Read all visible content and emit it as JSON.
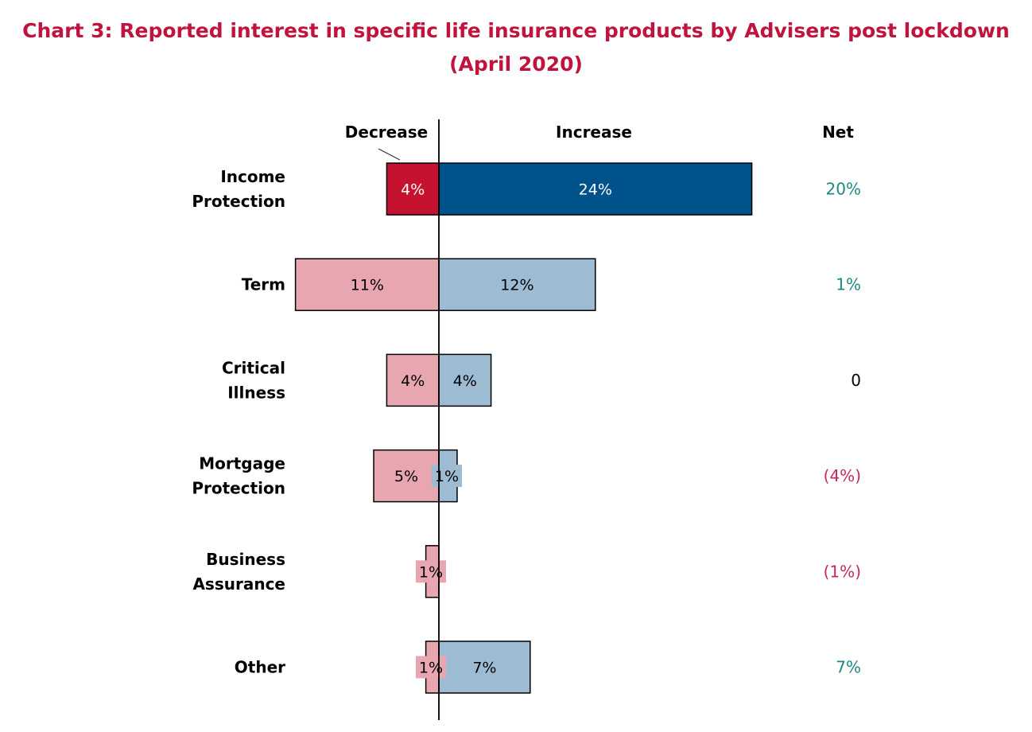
{
  "title_line1": "Chart 3: Reported interest in specific life insurance products by Advisers post lockdown",
  "title_line2": "(April 2020)",
  "colors": {
    "title": "#c0143c",
    "decrease_highlight": "#c41230",
    "increase_highlight": "#00538a",
    "decrease": "#e8a7b0",
    "increase": "#9dbcd4",
    "net_positive": "#1a8a80",
    "net_negative": "#c42a5a",
    "net_zero": "#000000"
  },
  "chart_data": {
    "type": "bar",
    "orientation": "horizontal-diverging",
    "column_headers": {
      "decrease": "Decrease",
      "increase": "Increase",
      "net": "Net"
    },
    "categories": [
      [
        "Income",
        "Protection"
      ],
      [
        "Term"
      ],
      [
        "Critical",
        "Illness"
      ],
      [
        "Mortgage",
        "Protection"
      ],
      [
        "Business",
        "Assurance"
      ],
      [
        "Other"
      ]
    ],
    "series": [
      {
        "name": "Decrease",
        "values": [
          4,
          11,
          4,
          5,
          1,
          1
        ],
        "labels": [
          "4%",
          "11%",
          "4%",
          "5%",
          "1%",
          "1%"
        ]
      },
      {
        "name": "Increase",
        "values": [
          24,
          12,
          4,
          1.4,
          0,
          7
        ],
        "labels": [
          "24%",
          "12%",
          "4%",
          "1%",
          "",
          "7%"
        ]
      }
    ],
    "net": [
      {
        "label": "20%",
        "sign": "positive"
      },
      {
        "label": "1%",
        "sign": "positive"
      },
      {
        "label": "0",
        "sign": "zero"
      },
      {
        "label": "(4%)",
        "sign": "negative"
      },
      {
        "label": "(1%)",
        "sign": "negative"
      },
      {
        "label": "7%",
        "sign": "positive"
      }
    ],
    "highlight_row": 0
  }
}
